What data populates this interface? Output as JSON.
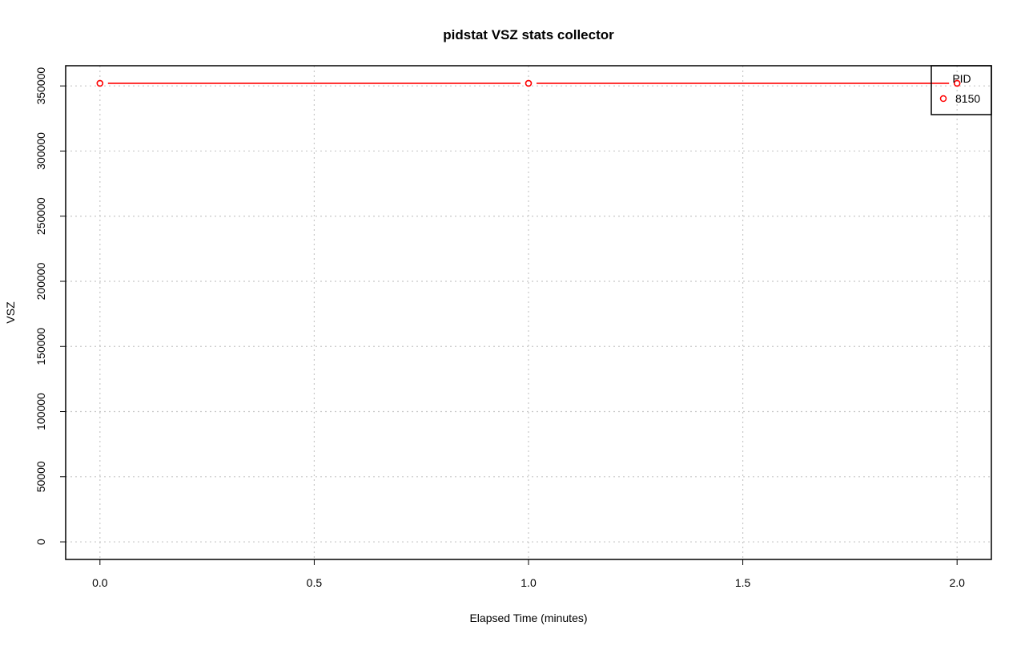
{
  "chart_data": {
    "type": "line",
    "title": "pidstat VSZ stats collector",
    "xlabel": "Elapsed Time (minutes)",
    "ylabel": "VSZ",
    "xlim": [
      -0.08,
      2.08
    ],
    "ylim": [
      -13500,
      365500
    ],
    "x_ticks": [
      "0.0",
      "0.5",
      "1.0",
      "1.5",
      "2.0"
    ],
    "y_ticks": [
      "0",
      "50000",
      "100000",
      "150000",
      "200000",
      "250000",
      "300000",
      "350000"
    ],
    "grid": true,
    "legend": {
      "title": "PID",
      "position": "top-right"
    },
    "series": [
      {
        "name": "8150",
        "color": "#ff0000",
        "x": [
          0,
          1,
          2
        ],
        "y": [
          352000,
          352000,
          352000
        ]
      }
    ]
  }
}
